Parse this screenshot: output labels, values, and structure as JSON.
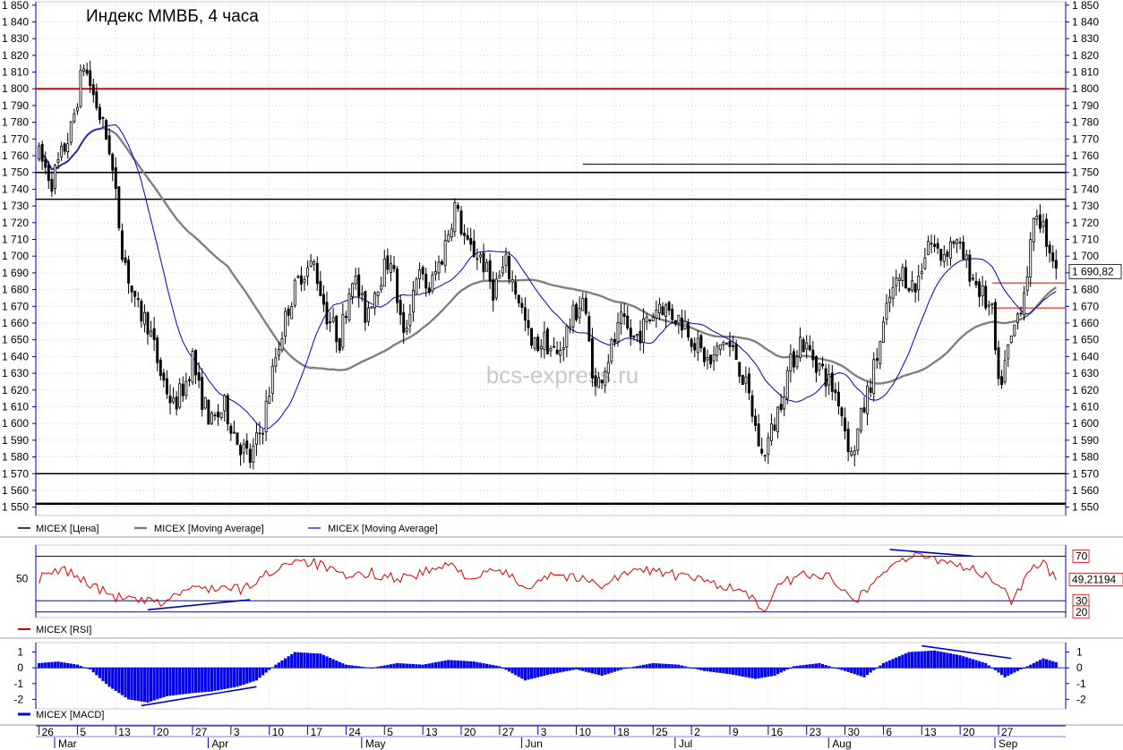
{
  "chart_data": [
    {
      "type": "candlestick",
      "title": "Индекс ММВБ, 4 часа",
      "watermark": "bcs-express.ru",
      "ylim": [
        1545,
        1852
      ],
      "yticks": [
        1550,
        1560,
        1570,
        1580,
        1590,
        1600,
        1610,
        1620,
        1630,
        1640,
        1650,
        1660,
        1670,
        1680,
        1690,
        1700,
        1710,
        1720,
        1730,
        1740,
        1750,
        1760,
        1770,
        1780,
        1790,
        1800,
        1810,
        1820,
        1830,
        1840,
        1850
      ],
      "last_value_label": "1 690,82",
      "anchors": [
        {
          "d": 0,
          "p": 1760
        },
        {
          "d": 2,
          "p": 1745
        },
        {
          "d": 5,
          "p": 1775
        },
        {
          "d": 7,
          "p": 1815
        },
        {
          "d": 9,
          "p": 1790
        },
        {
          "d": 11,
          "p": 1765
        },
        {
          "d": 12,
          "p": 1735
        },
        {
          "d": 13,
          "p": 1705
        },
        {
          "d": 15,
          "p": 1670
        },
        {
          "d": 17,
          "p": 1660
        },
        {
          "d": 19,
          "p": 1630
        },
        {
          "d": 21,
          "p": 1610
        },
        {
          "d": 23,
          "p": 1625
        },
        {
          "d": 24,
          "p": 1640
        },
        {
          "d": 25,
          "p": 1620
        },
        {
          "d": 27,
          "p": 1600
        },
        {
          "d": 29,
          "p": 1610
        },
        {
          "d": 31,
          "p": 1590
        },
        {
          "d": 33,
          "p": 1578
        },
        {
          "d": 35,
          "p": 1600
        },
        {
          "d": 37,
          "p": 1640
        },
        {
          "d": 39,
          "p": 1670
        },
        {
          "d": 41,
          "p": 1690
        },
        {
          "d": 43,
          "p": 1695
        },
        {
          "d": 45,
          "p": 1665
        },
        {
          "d": 47,
          "p": 1650
        },
        {
          "d": 49,
          "p": 1690
        },
        {
          "d": 51,
          "p": 1665
        },
        {
          "d": 53,
          "p": 1685
        },
        {
          "d": 55,
          "p": 1700
        },
        {
          "d": 57,
          "p": 1650
        },
        {
          "d": 59,
          "p": 1690
        },
        {
          "d": 61,
          "p": 1680
        },
        {
          "d": 63,
          "p": 1700
        },
        {
          "d": 65,
          "p": 1730
        },
        {
          "d": 67,
          "p": 1705
        },
        {
          "d": 69,
          "p": 1700
        },
        {
          "d": 71,
          "p": 1680
        },
        {
          "d": 73,
          "p": 1695
        },
        {
          "d": 75,
          "p": 1675
        },
        {
          "d": 77,
          "p": 1645
        },
        {
          "d": 79,
          "p": 1650
        },
        {
          "d": 81,
          "p": 1640
        },
        {
          "d": 83,
          "p": 1660
        },
        {
          "d": 85,
          "p": 1675
        },
        {
          "d": 87,
          "p": 1620
        },
        {
          "d": 89,
          "p": 1640
        },
        {
          "d": 91,
          "p": 1660
        },
        {
          "d": 93,
          "p": 1650
        },
        {
          "d": 95,
          "p": 1660
        },
        {
          "d": 97,
          "p": 1672
        },
        {
          "d": 99,
          "p": 1665
        },
        {
          "d": 101,
          "p": 1660
        },
        {
          "d": 103,
          "p": 1645
        },
        {
          "d": 105,
          "p": 1635
        },
        {
          "d": 107,
          "p": 1650
        },
        {
          "d": 109,
          "p": 1640
        },
        {
          "d": 111,
          "p": 1615
        },
        {
          "d": 113,
          "p": 1580
        },
        {
          "d": 115,
          "p": 1600
        },
        {
          "d": 117,
          "p": 1630
        },
        {
          "d": 119,
          "p": 1650
        },
        {
          "d": 121,
          "p": 1640
        },
        {
          "d": 123,
          "p": 1628
        },
        {
          "d": 125,
          "p": 1615
        },
        {
          "d": 127,
          "p": 1580
        },
        {
          "d": 129,
          "p": 1610
        },
        {
          "d": 131,
          "p": 1640
        },
        {
          "d": 133,
          "p": 1675
        },
        {
          "d": 135,
          "p": 1690
        },
        {
          "d": 137,
          "p": 1680
        },
        {
          "d": 139,
          "p": 1710
        },
        {
          "d": 141,
          "p": 1700
        },
        {
          "d": 143,
          "p": 1710
        },
        {
          "d": 145,
          "p": 1695
        },
        {
          "d": 147,
          "p": 1680
        },
        {
          "d": 149,
          "p": 1665
        },
        {
          "d": 150,
          "p": 1620
        },
        {
          "d": 152,
          "p": 1650
        },
        {
          "d": 154,
          "p": 1680
        },
        {
          "d": 156,
          "p": 1728
        },
        {
          "d": 158,
          "p": 1705
        },
        {
          "d": 159.5,
          "p": 1691
        }
      ],
      "rsi": {
        "ylim": [
          15,
          80
        ],
        "levels": [
          70,
          30,
          20
        ],
        "tick": 50,
        "last_value_label": "49,21194",
        "anchors": [
          {
            "d": 0,
            "p": 50
          },
          {
            "d": 4,
            "p": 58
          },
          {
            "d": 8,
            "p": 45
          },
          {
            "d": 11,
            "p": 35
          },
          {
            "d": 15,
            "p": 30
          },
          {
            "d": 19,
            "p": 28
          },
          {
            "d": 23,
            "p": 40
          },
          {
            "d": 27,
            "p": 42
          },
          {
            "d": 32,
            "p": 40
          },
          {
            "d": 36,
            "p": 55
          },
          {
            "d": 40,
            "p": 68
          },
          {
            "d": 44,
            "p": 62
          },
          {
            "d": 48,
            "p": 50
          },
          {
            "d": 52,
            "p": 55
          },
          {
            "d": 56,
            "p": 50
          },
          {
            "d": 60,
            "p": 55
          },
          {
            "d": 64,
            "p": 62
          },
          {
            "d": 68,
            "p": 50
          },
          {
            "d": 72,
            "p": 58
          },
          {
            "d": 76,
            "p": 42
          },
          {
            "d": 80,
            "p": 55
          },
          {
            "d": 84,
            "p": 50
          },
          {
            "d": 88,
            "p": 45
          },
          {
            "d": 92,
            "p": 55
          },
          {
            "d": 96,
            "p": 58
          },
          {
            "d": 100,
            "p": 52
          },
          {
            "d": 104,
            "p": 48
          },
          {
            "d": 108,
            "p": 42
          },
          {
            "d": 111,
            "p": 35
          },
          {
            "d": 113,
            "p": 20
          },
          {
            "d": 116,
            "p": 45
          },
          {
            "d": 120,
            "p": 55
          },
          {
            "d": 124,
            "p": 50
          },
          {
            "d": 128,
            "p": 32
          },
          {
            "d": 131,
            "p": 50
          },
          {
            "d": 134,
            "p": 66
          },
          {
            "d": 138,
            "p": 70
          },
          {
            "d": 142,
            "p": 66
          },
          {
            "d": 146,
            "p": 58
          },
          {
            "d": 150,
            "p": 45
          },
          {
            "d": 152,
            "p": 30
          },
          {
            "d": 155,
            "p": 58
          },
          {
            "d": 157,
            "p": 62
          },
          {
            "d": 159.5,
            "p": 49
          }
        ]
      },
      "macd": {
        "ylim": [
          -2.6,
          1.6
        ],
        "ticks": [
          1,
          0,
          -1,
          -2
        ],
        "anchors": [
          {
            "d": 0,
            "p": 0.3
          },
          {
            "d": 3,
            "p": 0.4
          },
          {
            "d": 6,
            "p": 0.2
          },
          {
            "d": 8,
            "p": -0.1
          },
          {
            "d": 11,
            "p": -1.2
          },
          {
            "d": 14,
            "p": -2.0
          },
          {
            "d": 17,
            "p": -2.2
          },
          {
            "d": 20,
            "p": -1.8
          },
          {
            "d": 24,
            "p": -1.6
          },
          {
            "d": 27,
            "p": -1.5
          },
          {
            "d": 31,
            "p": -1.2
          },
          {
            "d": 34,
            "p": -0.8
          },
          {
            "d": 37,
            "p": 0.2
          },
          {
            "d": 40,
            "p": 1.0
          },
          {
            "d": 44,
            "p": 0.9
          },
          {
            "d": 48,
            "p": 0.2
          },
          {
            "d": 52,
            "p": 0.0
          },
          {
            "d": 56,
            "p": 0.3
          },
          {
            "d": 60,
            "p": 0.2
          },
          {
            "d": 64,
            "p": 0.5
          },
          {
            "d": 68,
            "p": 0.4
          },
          {
            "d": 72,
            "p": 0.1
          },
          {
            "d": 76,
            "p": -0.8
          },
          {
            "d": 80,
            "p": -0.4
          },
          {
            "d": 84,
            "p": -0.1
          },
          {
            "d": 88,
            "p": -0.5
          },
          {
            "d": 92,
            "p": 0.0
          },
          {
            "d": 96,
            "p": 0.3
          },
          {
            "d": 100,
            "p": 0.2
          },
          {
            "d": 104,
            "p": -0.2
          },
          {
            "d": 108,
            "p": -0.4
          },
          {
            "d": 112,
            "p": -0.7
          },
          {
            "d": 115,
            "p": -0.5
          },
          {
            "d": 118,
            "p": 0.1
          },
          {
            "d": 122,
            "p": 0.3
          },
          {
            "d": 126,
            "p": -0.2
          },
          {
            "d": 129,
            "p": -0.6
          },
          {
            "d": 132,
            "p": 0.3
          },
          {
            "d": 136,
            "p": 1.0
          },
          {
            "d": 140,
            "p": 1.1
          },
          {
            "d": 144,
            "p": 0.8
          },
          {
            "d": 148,
            "p": 0.3
          },
          {
            "d": 151,
            "p": -0.6
          },
          {
            "d": 154,
            "p": 0.0
          },
          {
            "d": 157,
            "p": 0.6
          },
          {
            "d": 159.5,
            "p": 0.3
          }
        ]
      },
      "legends": {
        "main": [
          "MICEX [Цена]",
          "MICEX [Moving Average]",
          "MICEX [Moving Average]"
        ],
        "rsi": "MICEX [RSI]",
        "macd": "MICEX [MACD]"
      },
      "colors": {
        "price": "#000000",
        "ma_long": "#808080",
        "ma_short": "#0000cc",
        "rsi": "#dd0000",
        "macd": "#0000ee",
        "level_red": "#dd0000",
        "axis": "#0000aa"
      },
      "levels": {
        "red": 1800,
        "black": [
          1750,
          1734,
          1570,
          1552
        ],
        "black_thin": [
          1755
        ],
        "red_short": [
          1684,
          1669
        ]
      },
      "x_axis": {
        "day_labels": [
          {
            "d": 0,
            "t": "26"
          },
          {
            "d": 6,
            "t": "5"
          },
          {
            "d": 12,
            "t": "13"
          },
          {
            "d": 18,
            "t": "20"
          },
          {
            "d": 24,
            "t": "27"
          },
          {
            "d": 30,
            "t": "3"
          },
          {
            "d": 36,
            "t": "10"
          },
          {
            "d": 42,
            "t": "17"
          },
          {
            "d": 48,
            "t": "24"
          },
          {
            "d": 54,
            "t": "5"
          },
          {
            "d": 60,
            "t": "13"
          },
          {
            "d": 66,
            "t": "20"
          },
          {
            "d": 72,
            "t": "27"
          },
          {
            "d": 78,
            "t": "3"
          },
          {
            "d": 84,
            "t": "10"
          },
          {
            "d": 90,
            "t": "18"
          },
          {
            "d": 96,
            "t": "25"
          },
          {
            "d": 102,
            "t": "2"
          },
          {
            "d": 108,
            "t": "9"
          },
          {
            "d": 114,
            "t": "16"
          },
          {
            "d": 120,
            "t": "23"
          },
          {
            "d": 126,
            "t": "30"
          },
          {
            "d": 132,
            "t": "6"
          },
          {
            "d": 138,
            "t": "13"
          },
          {
            "d": 144,
            "t": "20"
          },
          {
            "d": 150,
            "t": "27"
          }
        ],
        "month_labels": [
          {
            "d": 3,
            "t": "Mar"
          },
          {
            "d": 27,
            "t": "Apr"
          },
          {
            "d": 51,
            "t": "May"
          },
          {
            "d": 76,
            "t": "Jun"
          },
          {
            "d": 100,
            "t": "Jul"
          },
          {
            "d": 124,
            "t": "Aug"
          },
          {
            "d": 150,
            "t": "Sep"
          }
        ]
      }
    }
  ]
}
